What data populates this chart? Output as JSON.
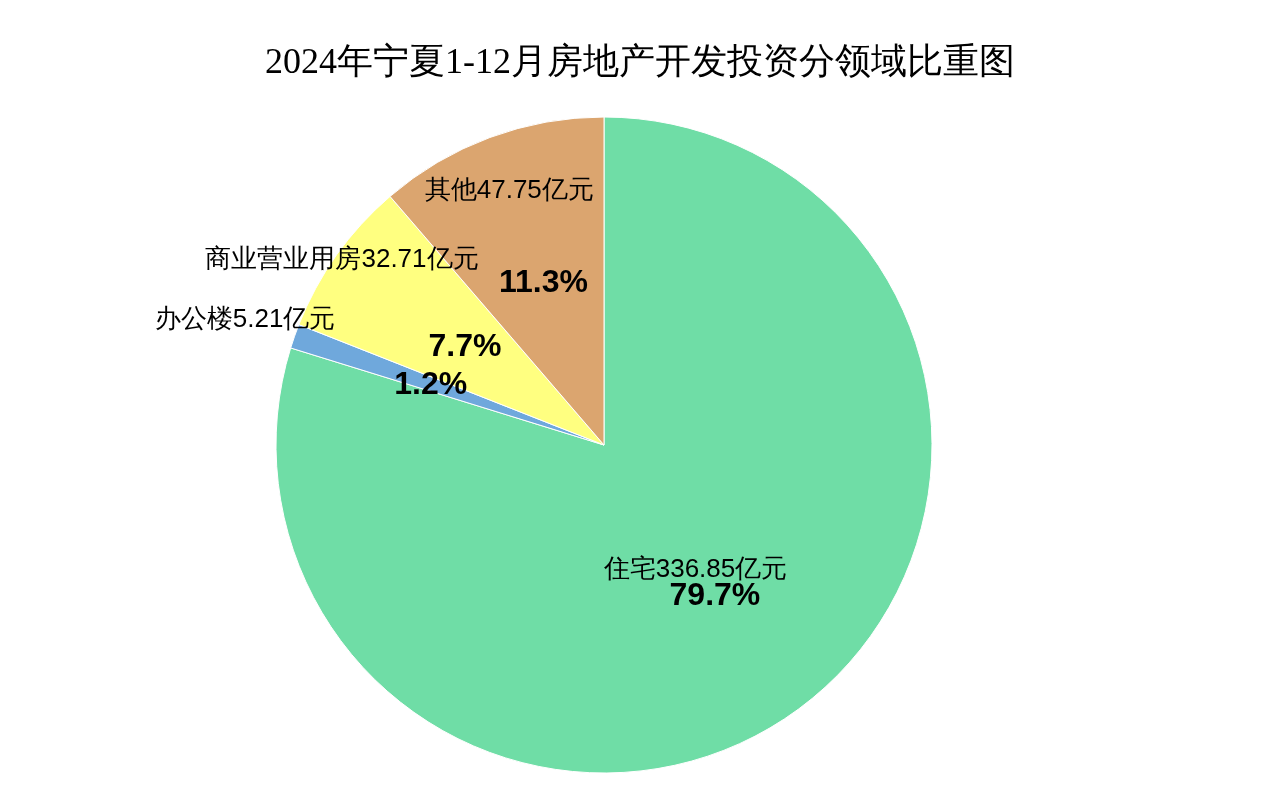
{
  "chart_data": {
    "type": "pie",
    "title": "2024年宁夏1-12月房地产开发投资分领域比重图",
    "categories": [
      "住宅336.85亿元",
      "办公楼5.21亿元",
      "商业营业用房32.71亿元",
      "其他47.75亿元"
    ],
    "values": [
      79.7,
      1.2,
      7.7,
      11.3
    ],
    "value_labels": [
      "79.7%",
      "1.2%",
      "7.7%",
      "11.3%"
    ],
    "colors": [
      "#6fdda6",
      "#6fa8dc",
      "#ffff80",
      "#dba56f"
    ]
  }
}
